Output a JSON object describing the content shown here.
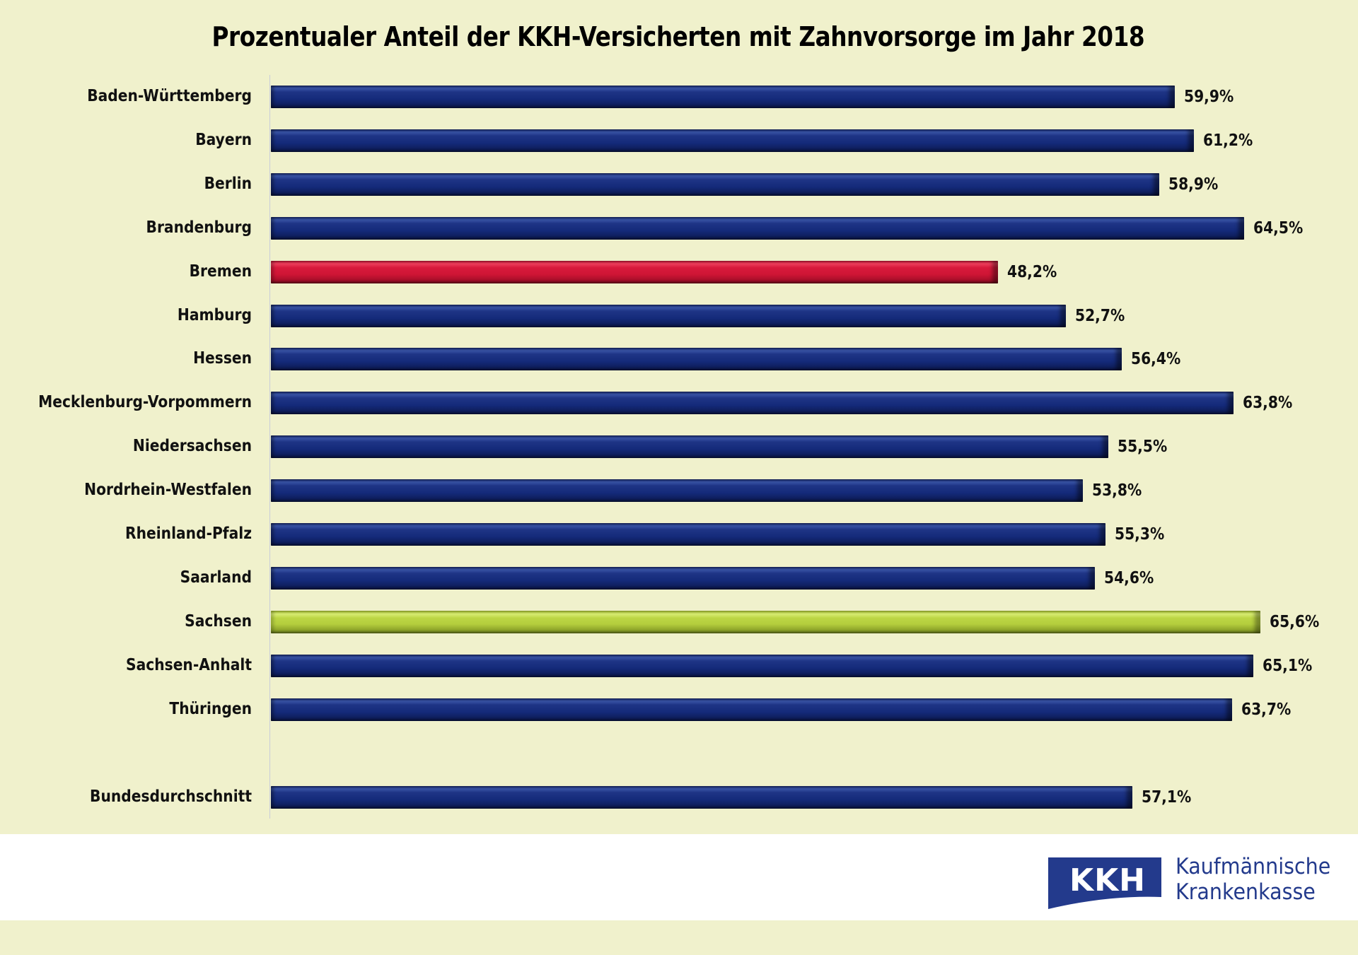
{
  "chart_data": {
    "type": "bar",
    "orientation": "horizontal",
    "title": "Prozentualer Anteil der KKH-Versicherten mit Zahnvorsorge im Jahr 2018",
    "xlabel": "",
    "ylabel": "",
    "xlim": [
      0,
      70
    ],
    "grid": false,
    "legend": "none",
    "unit": "%",
    "categories": [
      "Baden-Württemberg",
      "Bayern",
      "Berlin",
      "Brandenburg",
      "Bremen",
      "Hamburg",
      "Hessen",
      "Mecklenburg-Vorpommern",
      "Niedersachsen",
      "Nordrhein-Westfalen",
      "Rheinland-Pfalz",
      "Saarland",
      "Sachsen",
      "Sachsen-Anhalt",
      "Thüringen",
      "Bundesdurchschnitt"
    ],
    "values": [
      59.9,
      61.2,
      58.9,
      64.5,
      48.2,
      52.7,
      56.4,
      63.8,
      55.5,
      53.8,
      55.3,
      54.6,
      65.6,
      65.1,
      63.7,
      57.1
    ],
    "value_labels": [
      "59,9%",
      "61,2%",
      "58,9%",
      "64,5%",
      "48,2%",
      "52,7%",
      "56,4%",
      "63,8%",
      "55,5%",
      "53,8%",
      "55,3%",
      "54,6%",
      "65,6%",
      "65,1%",
      "63,7%",
      "57,1%"
    ],
    "highlights": {
      "Bremen": "lowest",
      "Sachsen": "highest"
    },
    "colors": {
      "default": "#1a2f80",
      "lowest": "#d81a3c",
      "highest": "#bcd645"
    },
    "gap_before": "Bundesdurchschnitt"
  },
  "brand": {
    "logo_text": "KKH",
    "name_line1": "Kaufmännische",
    "name_line2": "Krankenkasse",
    "color": "#233a8c"
  },
  "theme": {
    "background": "#f0f1cc",
    "footer": "#ffffff"
  }
}
